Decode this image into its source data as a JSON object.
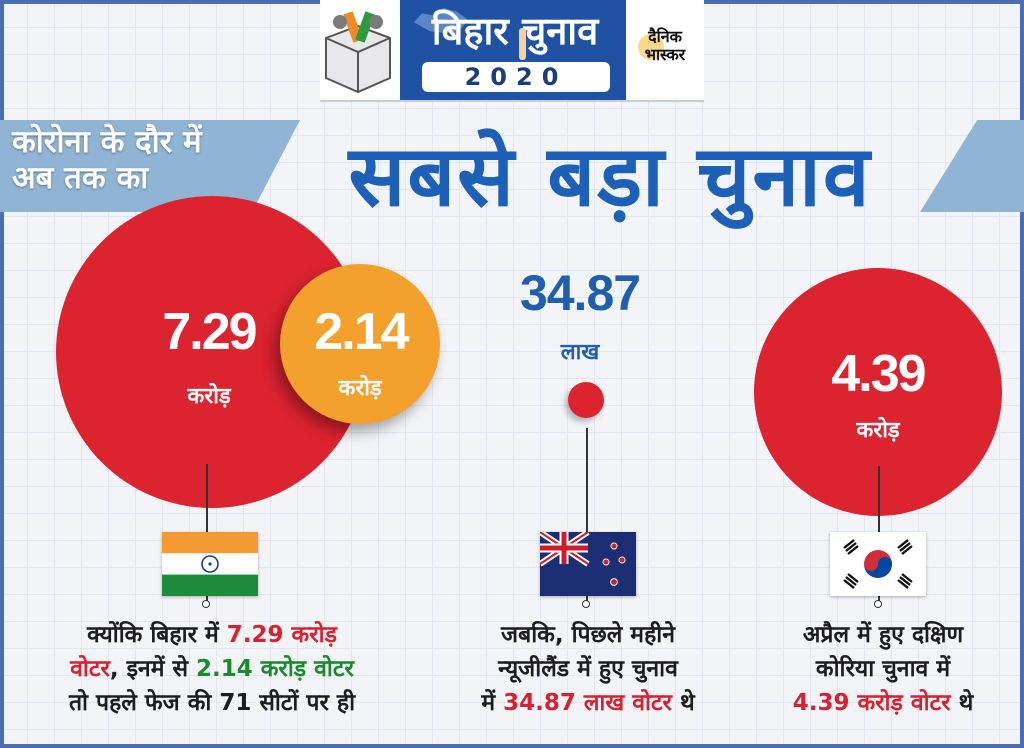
{
  "header": {
    "title": "बिहार चुनाव",
    "year": "2020",
    "brand": "दैनिक भास्कर"
  },
  "title": {
    "subtitle": "कोरोना के दौर में अब तक का",
    "headline": "सबसे बड़ा चुनाव"
  },
  "india": {
    "total_value": "7.29",
    "total_unit": "करोड़",
    "phase_value": "2.14",
    "phase_unit": "करोड़",
    "flag": "india-flag-icon",
    "caption": {
      "l1_pre": "क्योंकि बिहार में ",
      "l1_hl": "7.29 करोड़",
      "l2_hl1": "वोटर",
      "l2_mid": ", इनमें से ",
      "l2_hl2": "2.14 करोड़ वोटर",
      "l3": "तो पहले फेज की 71 सीटों पर ही"
    }
  },
  "new_zealand": {
    "value": "34.87",
    "unit": "लाख",
    "flag": "new-zealand-flag-icon",
    "caption": {
      "l1": "जबकि, पिछले महीने",
      "l2": "न्यूजीलैंड में हुए चुनाव",
      "l3_pre": "में ",
      "l3_hl": "34.87 लाख वोटर",
      "l3_post": " थे"
    }
  },
  "south_korea": {
    "value": "4.39",
    "unit": "करोड़",
    "flag": "south-korea-flag-icon",
    "caption": {
      "l1": "अप्रैल में हुए दक्षिण",
      "l2": "कोरिया चुनाव में",
      "l3_hl": "4.39 करोड़ वोटर",
      "l3_post": " थे"
    }
  },
  "colors": {
    "red": "#dc2330",
    "orange": "#f3a12c",
    "blue": "#1c60b8",
    "green": "#1a8a2b"
  }
}
